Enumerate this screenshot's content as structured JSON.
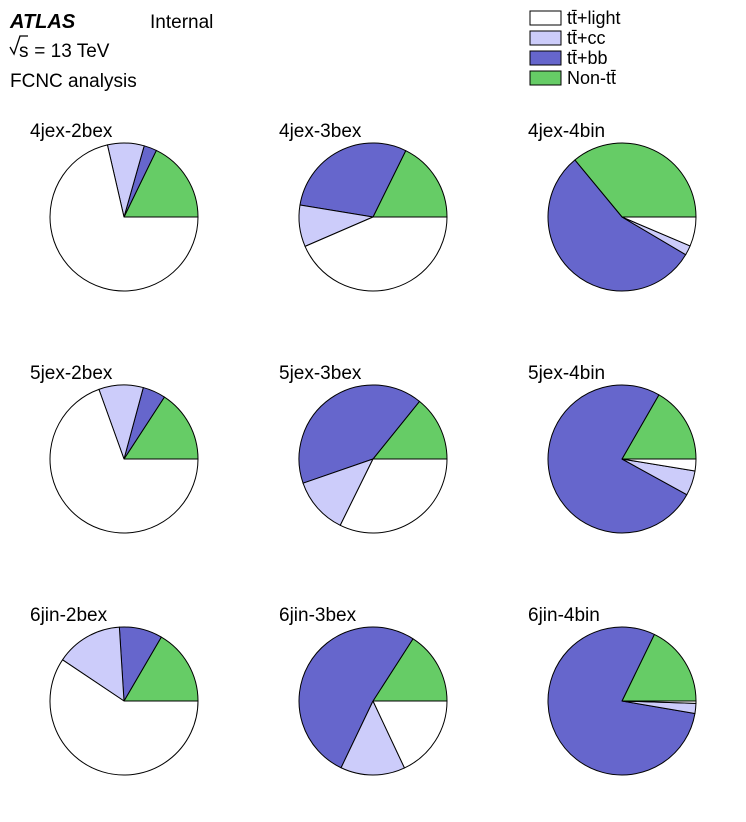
{
  "header": {
    "experiment": "ATLAS",
    "status": "Internal",
    "energy_sqrt": "s",
    "energy_rest": " = 13 TeV",
    "analysis": "FCNC analysis"
  },
  "legend": [
    {
      "label": "tt̄+light",
      "color": "#ffffff"
    },
    {
      "label": "tt̄+cc",
      "color": "#ccccfa"
    },
    {
      "label": "tt̄+bb",
      "color": "#6666cc"
    },
    {
      "label": "Non-tt̄",
      "color": "#66cc66"
    }
  ],
  "chart_data": {
    "type": "pie",
    "series_names": [
      "tt̄+light",
      "tt̄+cc",
      "tt̄+bb",
      "Non-tt̄"
    ],
    "colors": [
      "#ffffff",
      "#ccccfa",
      "#6666cc",
      "#66cc66"
    ],
    "start_angle_deg": 0,
    "direction": "counterclockwise",
    "draw_order": [
      "Non-tt̄",
      "tt̄+bb",
      "tt̄+cc",
      "tt̄+light"
    ],
    "regions": [
      {
        "title": "4jex-2bex",
        "values": {
          "tt̄+light": 0.714,
          "tt̄+cc": 0.08,
          "tt̄+bb": 0.028,
          "Non-tt̄": 0.178
        }
      },
      {
        "title": "4jex-3bex",
        "values": {
          "tt̄+light": 0.435,
          "tt̄+cc": 0.091,
          "tt̄+bb": 0.297,
          "Non-tt̄": 0.177
        }
      },
      {
        "title": "4jex-4bin",
        "values": {
          "tt̄+light": 0.064,
          "tt̄+cc": 0.021,
          "tt̄+bb": 0.555,
          "Non-tt̄": 0.36
        }
      },
      {
        "title": "5jex-2bex",
        "values": {
          "tt̄+light": 0.695,
          "tt̄+cc": 0.097,
          "tt̄+bb": 0.05,
          "Non-tt̄": 0.158
        }
      },
      {
        "title": "5jex-3bex",
        "values": {
          "tt̄+light": 0.323,
          "tt̄+cc": 0.124,
          "tt̄+bb": 0.411,
          "Non-tt̄": 0.142
        }
      },
      {
        "title": "5jex-4bin",
        "values": {
          "tt̄+light": 0.026,
          "tt̄+cc": 0.054,
          "tt̄+bb": 0.753,
          "Non-tt̄": 0.167
        }
      },
      {
        "title": "6jin-2bex",
        "values": {
          "tt̄+light": 0.594,
          "tt̄+cc": 0.146,
          "tt̄+bb": 0.094,
          "Non-tt̄": 0.166
        }
      },
      {
        "title": "6jin-3bex",
        "values": {
          "tt̄+light": 0.18,
          "tt̄+cc": 0.141,
          "tt̄+bb": 0.52,
          "Non-tt̄": 0.159
        }
      },
      {
        "title": "6jin-4bin",
        "values": {
          "tt̄+light": 0.005,
          "tt̄+cc": 0.022,
          "tt̄+bb": 0.795,
          "Non-tt̄": 0.178
        }
      }
    ]
  }
}
